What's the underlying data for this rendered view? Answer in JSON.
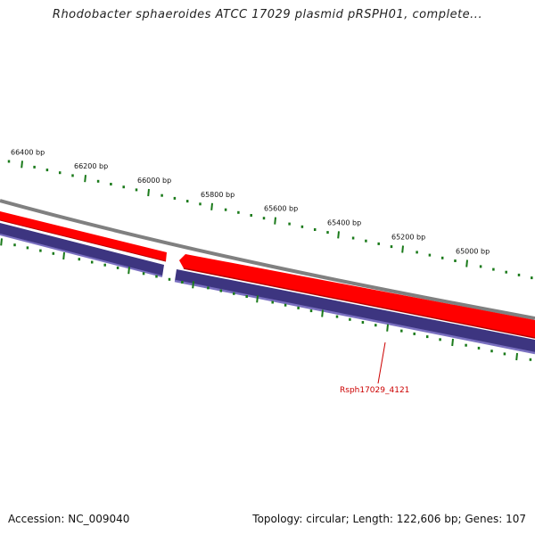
{
  "title": "Rhodobacter sphaeroides ATCC 17029 plasmid pRSPH01, complete...",
  "footer": {
    "accession": "Accession: NC_009040",
    "summary": "Topology: circular; Length: 122,606 bp; Genes: 107"
  },
  "ruler": {
    "labels": [
      "66400 bp",
      "66200 bp",
      "66000 bp",
      "65800 bp",
      "65600 bp",
      "65400 bp",
      "65200 bp",
      "65000 bp"
    ],
    "color": "#1a7a1a"
  },
  "tracks": {
    "backbone_color": "#808080",
    "forward_color": "#ff0000",
    "reverse_color": "#3d3580"
  },
  "gene_label": {
    "text": "Rsph17029_4121",
    "color": "#cc0000"
  }
}
